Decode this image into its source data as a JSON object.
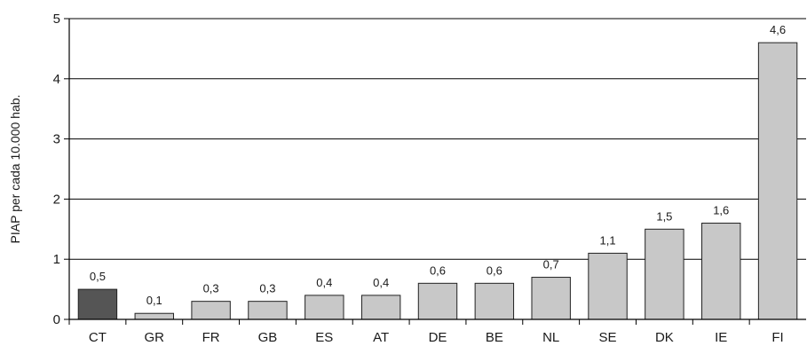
{
  "chart_data": {
    "type": "bar",
    "title": "",
    "xlabel": "",
    "ylabel": "PIAP per cada 10.000 hab.",
    "ylim": [
      0,
      5
    ],
    "yticks": [
      0,
      1,
      2,
      3,
      4,
      5
    ],
    "grid": true,
    "categories": [
      "CT",
      "GR",
      "FR",
      "GB",
      "ES",
      "AT",
      "DE",
      "BE",
      "NL",
      "SE",
      "DK",
      "IE",
      "FI"
    ],
    "values": [
      0.5,
      0.1,
      0.3,
      0.3,
      0.4,
      0.4,
      0.6,
      0.6,
      0.7,
      1.1,
      1.5,
      1.6,
      4.6
    ],
    "data_labels": [
      "0,5",
      "0,1",
      "0,3",
      "0,3",
      "0,4",
      "0,4",
      "0,6",
      "0,6",
      "0,7",
      "1,1",
      "1,5",
      "1,6",
      "4,6"
    ],
    "colors": {
      "highlight": "#555555",
      "bar": "#c8c8c8",
      "bar_stroke": "#222222",
      "axis": "#000000",
      "grid": "#000000"
    },
    "highlight_index": 0
  }
}
